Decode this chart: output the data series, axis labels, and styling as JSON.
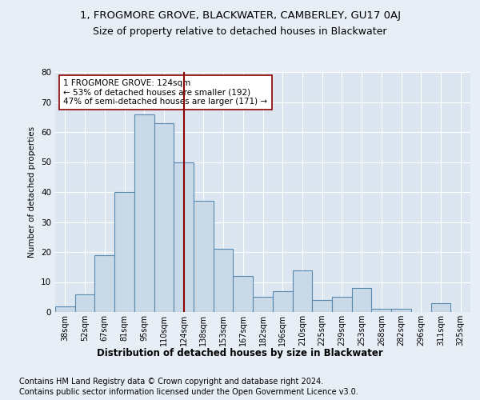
{
  "title_line1": "1, FROGMORE GROVE, BLACKWATER, CAMBERLEY, GU17 0AJ",
  "title_line2": "Size of property relative to detached houses in Blackwater",
  "xlabel": "Distribution of detached houses by size in Blackwater",
  "ylabel": "Number of detached properties",
  "bar_color": "#c9d9e8",
  "bar_edge_color": "#5a8ab0",
  "marker_color": "#8b0000",
  "annotation_box_color": "#8b0000",
  "background_color": "#e8eef5",
  "plot_bg_color": "#dce6f0",
  "categories": [
    "38sqm",
    "52sqm",
    "67sqm",
    "81sqm",
    "95sqm",
    "110sqm",
    "124sqm",
    "138sqm",
    "153sqm",
    "167sqm",
    "182sqm",
    "196sqm",
    "210sqm",
    "225sqm",
    "239sqm",
    "253sqm",
    "268sqm",
    "282sqm",
    "296sqm",
    "311sqm",
    "325sqm"
  ],
  "values": [
    2,
    6,
    19,
    40,
    66,
    63,
    50,
    37,
    21,
    12,
    5,
    7,
    14,
    4,
    5,
    8,
    1,
    1,
    0,
    3,
    0
  ],
  "marker_index": 6,
  "annotation_text": "1 FROGMORE GROVE: 124sqm\n← 53% of detached houses are smaller (192)\n47% of semi-detached houses are larger (171) →",
  "ylim": [
    0,
    80
  ],
  "yticks": [
    0,
    10,
    20,
    30,
    40,
    50,
    60,
    70,
    80
  ],
  "footnote1": "Contains HM Land Registry data © Crown copyright and database right 2024.",
  "footnote2": "Contains public sector information licensed under the Open Government Licence v3.0.",
  "title_fontsize": 9.5,
  "subtitle_fontsize": 9,
  "annotation_fontsize": 7.5,
  "footnote_fontsize": 7,
  "xlabel_fontsize": 8.5
}
